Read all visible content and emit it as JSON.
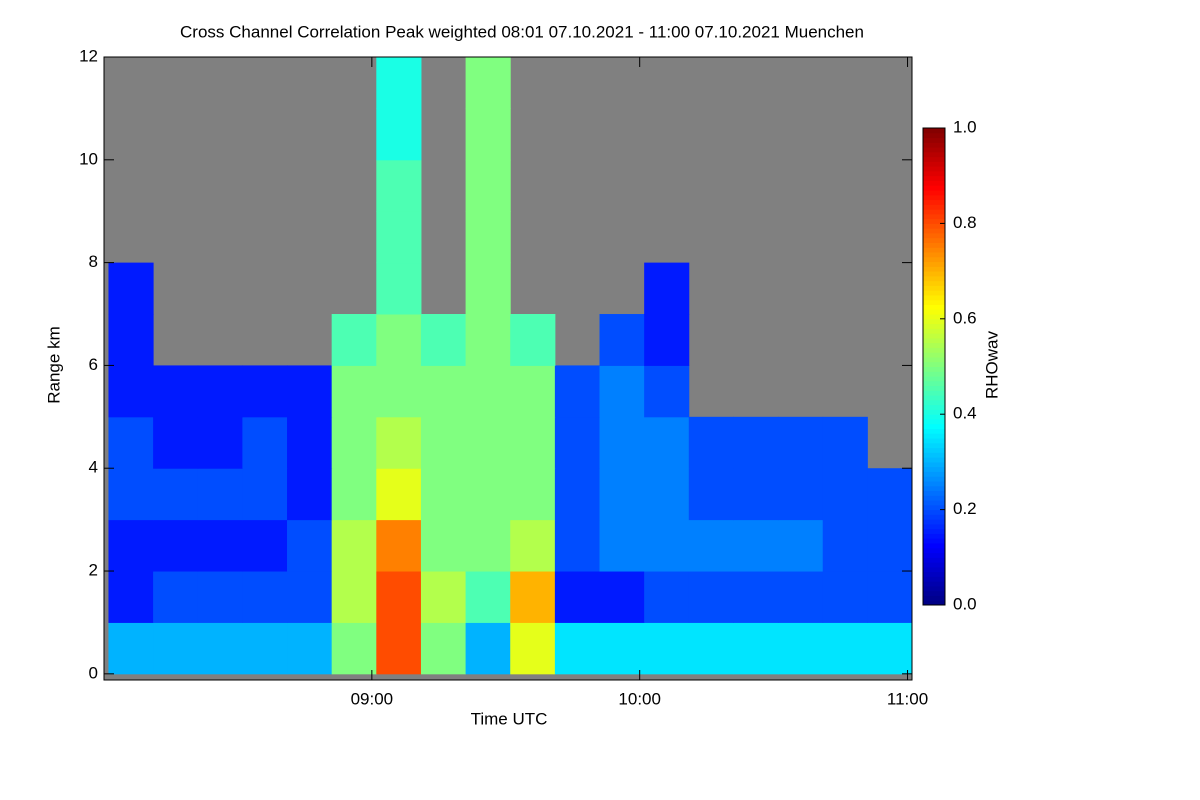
{
  "chart_data": {
    "type": "heatmap",
    "title": "Cross Channel Correlation Peak weighted   08:01 07.10.2021 - 11:00 07.10.2021 Muenchen",
    "x_label": "Time UTC",
    "y_label": "Range km",
    "colorbar_label": "RHOwav",
    "background": "#808080",
    "xlim": [
      480,
      661
    ],
    "xticks": [
      {
        "value": 540,
        "label": "09:00"
      },
      {
        "value": 600,
        "label": "10:00"
      },
      {
        "value": 660,
        "label": "11:00"
      }
    ],
    "ylim": [
      -0.12,
      12
    ],
    "yticks": [
      0,
      2,
      4,
      6,
      8,
      10,
      12
    ],
    "clim": [
      0,
      1
    ],
    "cticks": [
      {
        "value": 0,
        "label": "0.0"
      },
      0.2,
      0.4,
      0.6,
      0.8,
      {
        "value": 1,
        "label": "1.0"
      }
    ],
    "xbins": [
      481,
      491,
      501,
      511,
      521,
      531,
      541,
      551,
      561,
      571,
      581,
      591,
      601,
      611,
      621,
      631,
      641,
      651,
      661
    ],
    "ybins": [
      0,
      1,
      2,
      3,
      4,
      5,
      6,
      7,
      8,
      9,
      10,
      11,
      12
    ],
    "values": [
      [
        0.3,
        0.3,
        0.3,
        0.3,
        0.3,
        0.5,
        0.8,
        0.5,
        0.3,
        0.6,
        0.35,
        0.35,
        0.35,
        0.35,
        0.35,
        0.35,
        0.35,
        0.35
      ],
      [
        0.15,
        0.2,
        0.2,
        0.2,
        0.2,
        0.55,
        0.8,
        0.55,
        0.45,
        0.7,
        0.15,
        0.15,
        0.2,
        0.2,
        0.2,
        0.2,
        0.2,
        0.2
      ],
      [
        0.15,
        0.15,
        0.15,
        0.15,
        0.2,
        0.55,
        0.75,
        0.5,
        0.5,
        0.55,
        0.2,
        0.25,
        0.25,
        0.25,
        0.25,
        0.25,
        0.2,
        0.2
      ],
      [
        0.2,
        0.2,
        0.2,
        0.2,
        0.15,
        0.5,
        0.6,
        0.5,
        0.5,
        0.5,
        0.2,
        0.25,
        0.25,
        0.2,
        0.2,
        0.2,
        0.2,
        0.2
      ],
      [
        0.2,
        0.15,
        0.15,
        0.2,
        0.15,
        0.5,
        0.55,
        0.5,
        0.5,
        0.5,
        0.2,
        0.25,
        0.25,
        0.2,
        0.2,
        0.2,
        0.2,
        null
      ],
      [
        0.15,
        0.15,
        0.15,
        0.15,
        0.15,
        0.5,
        0.5,
        0.5,
        0.5,
        0.5,
        0.2,
        0.25,
        0.2,
        null,
        null,
        null,
        null,
        null
      ],
      [
        0.15,
        null,
        null,
        null,
        null,
        0.45,
        0.5,
        0.45,
        0.5,
        0.45,
        null,
        0.2,
        0.15,
        null,
        null,
        null,
        null,
        null
      ],
      [
        0.15,
        null,
        null,
        null,
        null,
        null,
        0.45,
        null,
        0.5,
        null,
        null,
        null,
        0.15,
        null,
        null,
        null,
        null,
        null
      ],
      [
        null,
        null,
        null,
        null,
        null,
        null,
        0.45,
        null,
        0.5,
        null,
        null,
        null,
        null,
        null,
        null,
        null,
        null,
        null
      ],
      [
        null,
        null,
        null,
        null,
        null,
        null,
        0.45,
        null,
        0.5,
        null,
        null,
        null,
        null,
        null,
        null,
        null,
        null,
        null
      ],
      [
        null,
        null,
        null,
        null,
        null,
        null,
        0.4,
        null,
        0.5,
        null,
        null,
        null,
        null,
        null,
        null,
        null,
        null,
        null
      ],
      [
        null,
        null,
        null,
        null,
        null,
        null,
        0.4,
        null,
        0.5,
        null,
        null,
        null,
        null,
        null,
        null,
        null,
        null,
        null
      ]
    ]
  }
}
